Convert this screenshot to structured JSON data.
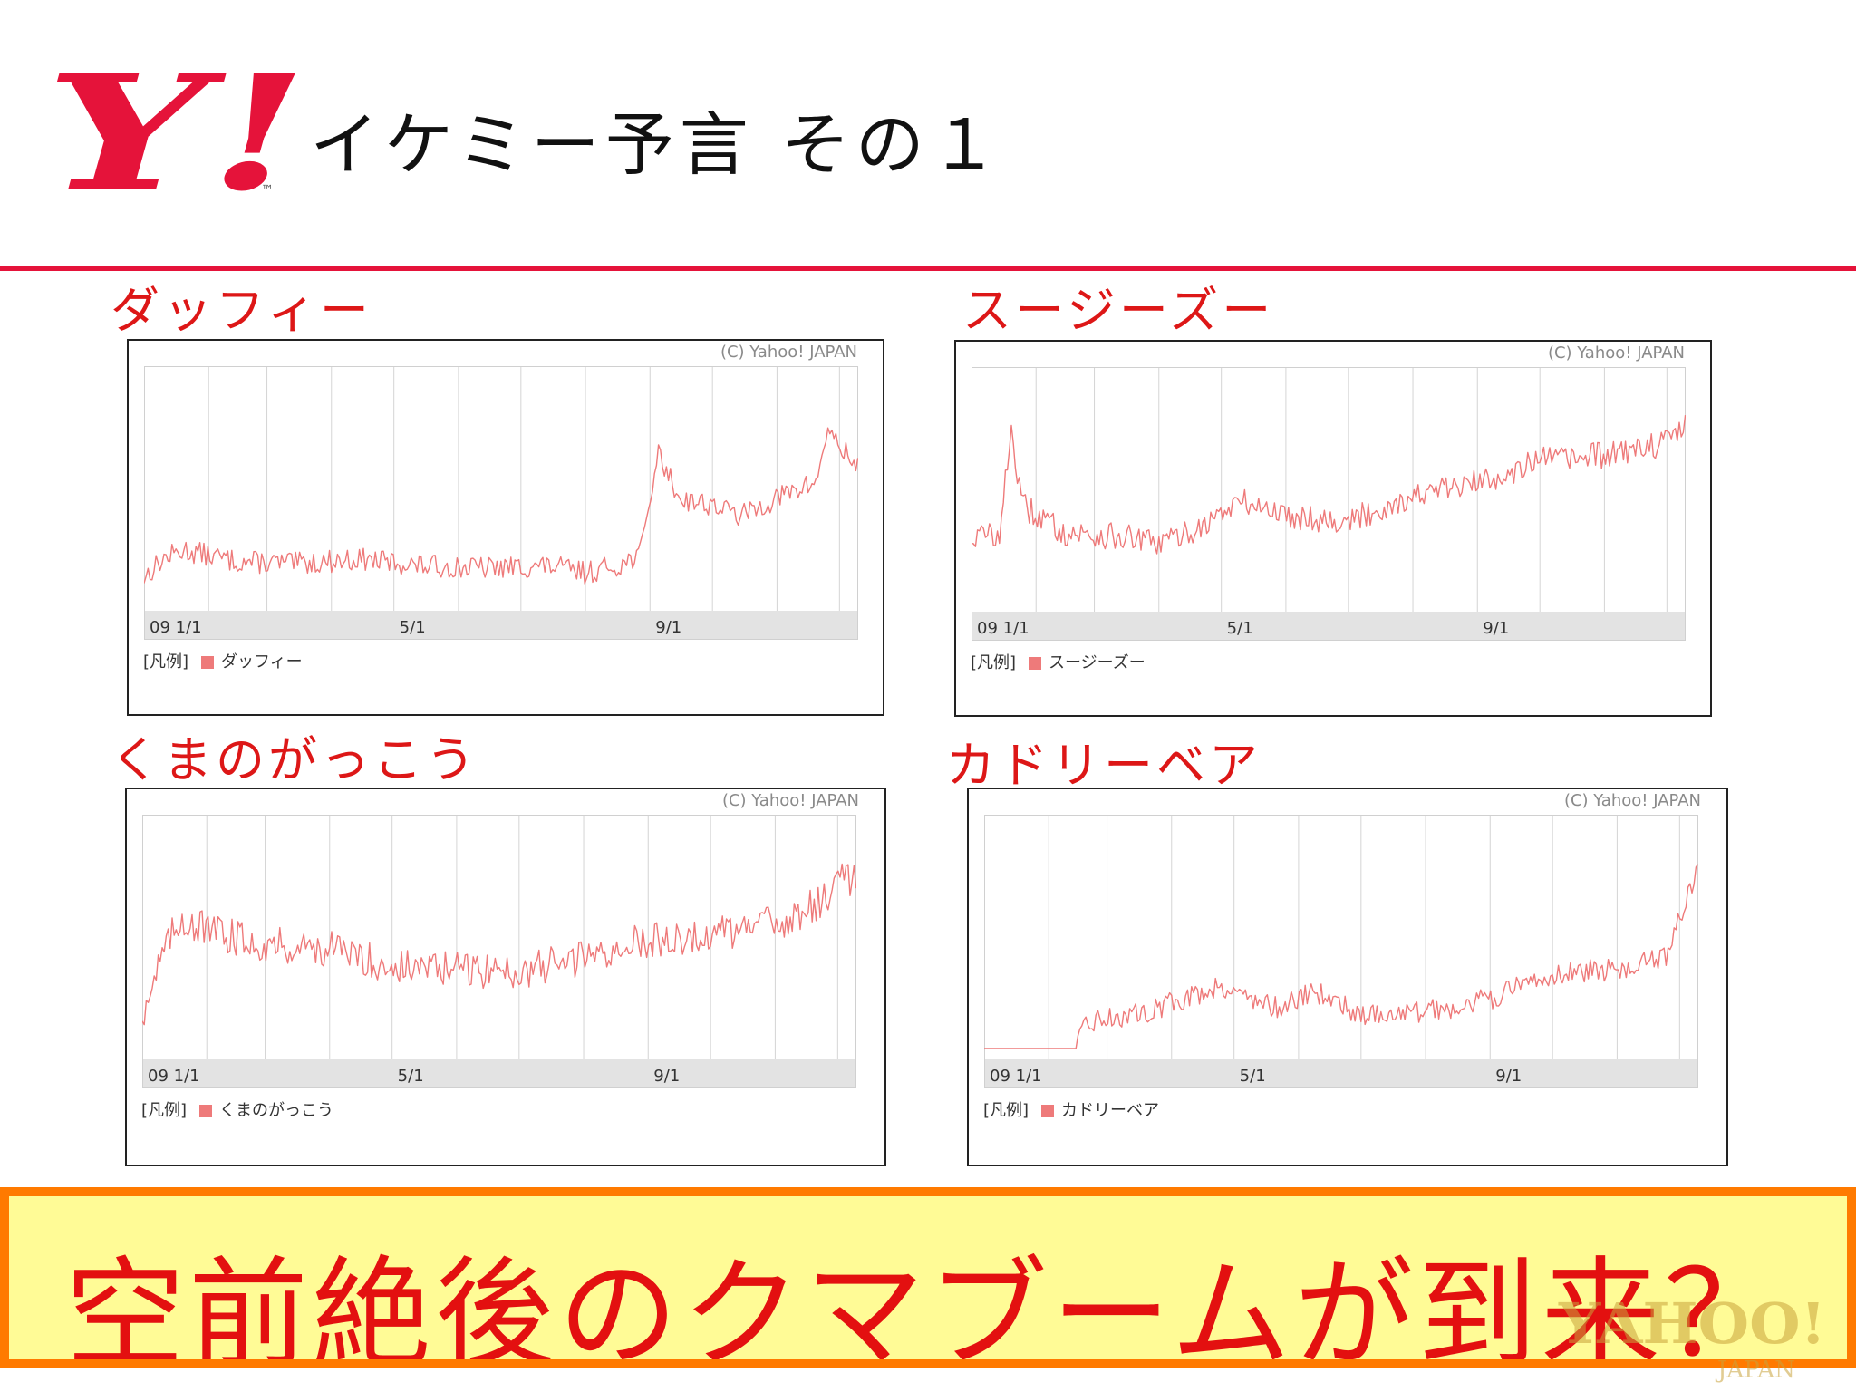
{
  "slide": {
    "title": "イケミー予言 その１",
    "banner": "空前絶後のクマブームが到来？",
    "logo_text": "Y!",
    "logo_tm": "™",
    "watermark": "YAHOO!",
    "watermark_sub": "JAPAN"
  },
  "colors": {
    "accent": "#e5133a",
    "series": "#ee7a7a",
    "title_red": "#dd1717",
    "banner_fill": "#fffb96",
    "banner_border": "#ff7a00"
  },
  "chart_data": [
    {
      "type": "line",
      "title": "ダッフィー",
      "credit": "(C) Yahoo! JAPAN",
      "xlim": [
        "2009-01-01",
        "2009-12-10"
      ],
      "ylim": [
        0,
        100
      ],
      "x_ticks": [
        {
          "x": "2009-01-01",
          "label": "09 1/1"
        },
        {
          "x": "2009-05-01",
          "label": "5/1"
        },
        {
          "x": "2009-09-01",
          "label": "9/1"
        }
      ],
      "legend_prefix": "[凡例]",
      "series": [
        {
          "name": "ダッフィー",
          "color": "#ee7a7a",
          "noise": 5,
          "points": [
            [
              "2009-01-01",
              10
            ],
            [
              "2009-01-10",
              18
            ],
            [
              "2009-01-20",
              22
            ],
            [
              "2009-02-15",
              17
            ],
            [
              "2009-03-15",
              16
            ],
            [
              "2009-04-15",
              18
            ],
            [
              "2009-05-15",
              15
            ],
            [
              "2009-06-15",
              14
            ],
            [
              "2009-07-15",
              15
            ],
            [
              "2009-08-01",
              12
            ],
            [
              "2009-08-20",
              16
            ],
            [
              "2009-08-28",
              22
            ],
            [
              "2009-09-01",
              45
            ],
            [
              "2009-09-05",
              65
            ],
            [
              "2009-09-15",
              45
            ],
            [
              "2009-10-01",
              42
            ],
            [
              "2009-10-15",
              37
            ],
            [
              "2009-11-01",
              45
            ],
            [
              "2009-11-20",
              52
            ],
            [
              "2009-11-25",
              75
            ],
            [
              "2009-12-01",
              68
            ],
            [
              "2009-12-10",
              58
            ]
          ]
        }
      ]
    },
    {
      "type": "line",
      "title": "スージーズー",
      "credit": "(C) Yahoo! JAPAN",
      "xlim": [
        "2009-01-01",
        "2009-12-10"
      ],
      "ylim": [
        0,
        100
      ],
      "x_ticks": [
        {
          "x": "2009-01-01",
          "label": "09 1/1"
        },
        {
          "x": "2009-05-01",
          "label": "5/1"
        },
        {
          "x": "2009-09-01",
          "label": "9/1"
        }
      ],
      "legend_prefix": "[凡例]",
      "series": [
        {
          "name": "スージーズー",
          "color": "#ee7a7a",
          "noise": 6,
          "points": [
            [
              "2009-01-01",
              28
            ],
            [
              "2009-01-15",
              30
            ],
            [
              "2009-01-20",
              78
            ],
            [
              "2009-01-25",
              42
            ],
            [
              "2009-02-15",
              30
            ],
            [
              "2009-03-15",
              28
            ],
            [
              "2009-04-01",
              25
            ],
            [
              "2009-04-20",
              32
            ],
            [
              "2009-05-10",
              44
            ],
            [
              "2009-06-01",
              38
            ],
            [
              "2009-07-01",
              35
            ],
            [
              "2009-08-01",
              46
            ],
            [
              "2009-09-01",
              52
            ],
            [
              "2009-10-01",
              62
            ],
            [
              "2009-11-01",
              64
            ],
            [
              "2009-12-01",
              70
            ],
            [
              "2009-12-10",
              80
            ]
          ]
        }
      ]
    },
    {
      "type": "line",
      "title": "くまのがっこう",
      "credit": "(C) Yahoo! JAPAN",
      "xlim": [
        "2009-01-01",
        "2009-12-10"
      ],
      "ylim": [
        0,
        100
      ],
      "x_ticks": [
        {
          "x": "2009-01-01",
          "label": "09 1/1"
        },
        {
          "x": "2009-05-01",
          "label": "5/1"
        },
        {
          "x": "2009-09-01",
          "label": "9/1"
        }
      ],
      "legend_prefix": "[凡例]",
      "series": [
        {
          "name": "くまのがっこう",
          "color": "#ee7a7a",
          "noise": 8,
          "points": [
            [
              "2009-01-01",
              15
            ],
            [
              "2009-01-10",
              40
            ],
            [
              "2009-01-20",
              58
            ],
            [
              "2009-02-01",
              52
            ],
            [
              "2009-03-01",
              46
            ],
            [
              "2009-04-01",
              44
            ],
            [
              "2009-05-01",
              36
            ],
            [
              "2009-06-01",
              35
            ],
            [
              "2009-07-01",
              34
            ],
            [
              "2009-08-01",
              40
            ],
            [
              "2009-09-01",
              48
            ],
            [
              "2009-10-01",
              50
            ],
            [
              "2009-11-01",
              55
            ],
            [
              "2009-11-25",
              65
            ],
            [
              "2009-12-01",
              80
            ],
            [
              "2009-12-10",
              72
            ]
          ]
        }
      ]
    },
    {
      "type": "line",
      "title": "カドリーベア",
      "credit": "(C) Yahoo! JAPAN",
      "xlim": [
        "2009-01-01",
        "2009-12-10"
      ],
      "ylim": [
        0,
        100
      ],
      "x_ticks": [
        {
          "x": "2009-01-01",
          "label": "09 1/1"
        },
        {
          "x": "2009-05-01",
          "label": "5/1"
        },
        {
          "x": "2009-09-01",
          "label": "9/1"
        }
      ],
      "legend_prefix": "[凡例]",
      "series": [
        {
          "name": "カドリーベア",
          "color": "#ee7a7a",
          "noise": 5,
          "points": [
            [
              "2009-01-01",
              0
            ],
            [
              "2009-02-14",
              0
            ],
            [
              "2009-02-20",
              12
            ],
            [
              "2009-03-15",
              15
            ],
            [
              "2009-04-01",
              20
            ],
            [
              "2009-04-25",
              28
            ],
            [
              "2009-05-20",
              18
            ],
            [
              "2009-06-10",
              25
            ],
            [
              "2009-07-01",
              15
            ],
            [
              "2009-08-01",
              16
            ],
            [
              "2009-09-01",
              22
            ],
            [
              "2009-10-01",
              33
            ],
            [
              "2009-11-01",
              35
            ],
            [
              "2009-11-25",
              40
            ],
            [
              "2009-12-05",
              68
            ],
            [
              "2009-12-10",
              80
            ]
          ]
        }
      ]
    }
  ]
}
